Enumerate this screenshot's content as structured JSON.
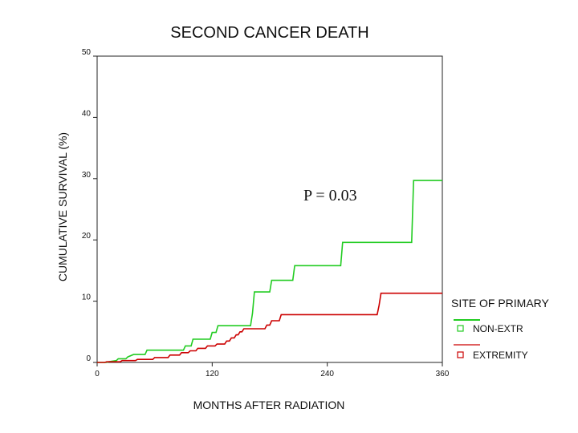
{
  "chart_data": {
    "type": "line",
    "step": true,
    "title": "SECOND CANCER DEATH",
    "xlabel": "MONTHS AFTER RADIATION",
    "ylabel": "CUMULATIVE SURVIVAL (%)",
    "xlim": [
      0,
      360
    ],
    "ylim": [
      0,
      50
    ],
    "xticks": [
      0,
      120,
      240,
      360
    ],
    "yticks": [
      0,
      10,
      20,
      30,
      40,
      50
    ],
    "grid": false,
    "annotation": "P = 0.03",
    "legend": {
      "title": "SITE OF PRIMARY",
      "placement": "right",
      "entries": [
        "NON-EXTR",
        "EXTREMITY"
      ]
    },
    "series": [
      {
        "name": "NON-EXTR",
        "color": "#22cc22",
        "points": [
          [
            0,
            0
          ],
          [
            10,
            0
          ],
          [
            12,
            0.1
          ],
          [
            20,
            0.3
          ],
          [
            22,
            0.6
          ],
          [
            30,
            0.6
          ],
          [
            32,
            0.9
          ],
          [
            38,
            1.3
          ],
          [
            50,
            1.3
          ],
          [
            52,
            2.0
          ],
          [
            90,
            2.0
          ],
          [
            92,
            2.7
          ],
          [
            98,
            2.7
          ],
          [
            100,
            3.8
          ],
          [
            118,
            3.8
          ],
          [
            120,
            4.9
          ],
          [
            124,
            4.9
          ],
          [
            126,
            6.0
          ],
          [
            160,
            6.0
          ],
          [
            162,
            8.0
          ],
          [
            164,
            11.5
          ],
          [
            180,
            11.5
          ],
          [
            182,
            13.4
          ],
          [
            204,
            13.4
          ],
          [
            206,
            15.8
          ],
          [
            254,
            15.8
          ],
          [
            256,
            19.6
          ],
          [
            328,
            19.6
          ],
          [
            330,
            29.7
          ],
          [
            360,
            29.7
          ]
        ]
      },
      {
        "name": "EXTREMITY",
        "color": "#cc0000",
        "points": [
          [
            0,
            0
          ],
          [
            8,
            0
          ],
          [
            10,
            0.1
          ],
          [
            24,
            0.1
          ],
          [
            26,
            0.3
          ],
          [
            40,
            0.3
          ],
          [
            42,
            0.5
          ],
          [
            58,
            0.5
          ],
          [
            60,
            0.8
          ],
          [
            74,
            0.8
          ],
          [
            76,
            1.2
          ],
          [
            86,
            1.2
          ],
          [
            88,
            1.6
          ],
          [
            95,
            1.6
          ],
          [
            97,
            1.9
          ],
          [
            103,
            1.9
          ],
          [
            105,
            2.3
          ],
          [
            113,
            2.3
          ],
          [
            115,
            2.7
          ],
          [
            123,
            2.7
          ],
          [
            125,
            3.0
          ],
          [
            133,
            3.0
          ],
          [
            135,
            3.5
          ],
          [
            138,
            3.5
          ],
          [
            140,
            4.0
          ],
          [
            143,
            4.0
          ],
          [
            145,
            4.5
          ],
          [
            147,
            4.5
          ],
          [
            149,
            5.0
          ],
          [
            151,
            5.0
          ],
          [
            153,
            5.5
          ],
          [
            175,
            5.5
          ],
          [
            177,
            6.1
          ],
          [
            180,
            6.1
          ],
          [
            182,
            6.8
          ],
          [
            190,
            6.8
          ],
          [
            192,
            7.8
          ],
          [
            292,
            7.8
          ],
          [
            294,
            9.3
          ],
          [
            296,
            11.3
          ],
          [
            360,
            11.3
          ]
        ]
      }
    ]
  }
}
